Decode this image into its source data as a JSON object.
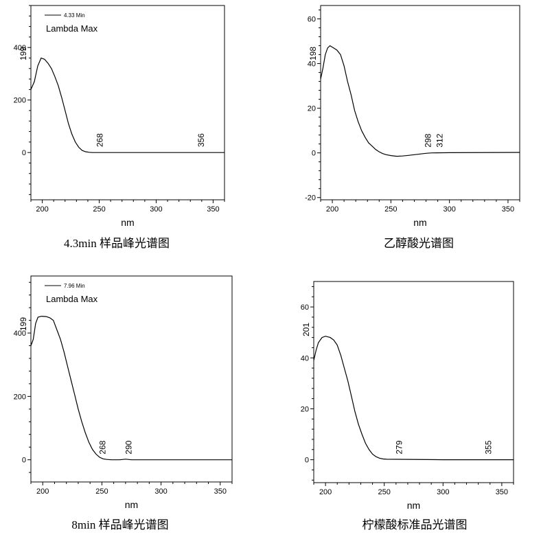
{
  "chart_data": [
    {
      "type": "line",
      "caption": "4.3min 样品峰光谱图",
      "xlabel": "nm",
      "xlim": [
        190,
        360
      ],
      "ylim": [
        -180,
        560
      ],
      "xticks": [
        200,
        250,
        300,
        350
      ],
      "yticks": [
        0,
        200,
        400
      ],
      "ylabel_top": "199",
      "legend": {
        "series_label": "4.33 Min",
        "title": "Lambda Max"
      },
      "peak_labels": [
        {
          "text": "268",
          "x": 253,
          "y": 0
        },
        {
          "text": "356",
          "x": 342,
          "y": 0
        }
      ],
      "series": [
        {
          "points": [
            [
              190,
              240
            ],
            [
              193,
              270
            ],
            [
              196,
              330
            ],
            [
              199,
              360
            ],
            [
              202,
              355
            ],
            [
              205,
              340
            ],
            [
              208,
              320
            ],
            [
              211,
              290
            ],
            [
              214,
              255
            ],
            [
              217,
              210
            ],
            [
              220,
              160
            ],
            [
              223,
              110
            ],
            [
              226,
              70
            ],
            [
              229,
              40
            ],
            [
              232,
              20
            ],
            [
              235,
              8
            ],
            [
              238,
              3
            ],
            [
              241,
              1
            ],
            [
              244,
              0
            ],
            [
              260,
              0
            ],
            [
              300,
              0
            ],
            [
              360,
              0
            ]
          ]
        }
      ]
    },
    {
      "type": "line",
      "caption": "乙醇酸光谱图",
      "xlabel": "nm",
      "xlim": [
        190,
        360
      ],
      "ylim": [
        -21,
        66
      ],
      "xticks": [
        200,
        250,
        300,
        350
      ],
      "yticks": [
        -20,
        0,
        20,
        40,
        60
      ],
      "ylabel_top": "198",
      "peak_labels": [
        {
          "text": "298",
          "x": 284,
          "y": 0
        },
        {
          "text": "312",
          "x": 294,
          "y": 0
        }
      ],
      "series": [
        {
          "points": [
            [
              190,
              33
            ],
            [
              192,
              38
            ],
            [
              194,
              44
            ],
            [
              196,
              47
            ],
            [
              198,
              48
            ],
            [
              201,
              47
            ],
            [
              204,
              46
            ],
            [
              207,
              44
            ],
            [
              210,
              39
            ],
            [
              213,
              32
            ],
            [
              216,
              26
            ],
            [
              219,
              19
            ],
            [
              222,
              14
            ],
            [
              225,
              10
            ],
            [
              228,
              7
            ],
            [
              231,
              4.5
            ],
            [
              234,
              3
            ],
            [
              237,
              1.5
            ],
            [
              240,
              0.5
            ],
            [
              243,
              -0.3
            ],
            [
              246,
              -0.8
            ],
            [
              250,
              -1.2
            ],
            [
              255,
              -1.5
            ],
            [
              260,
              -1.4
            ],
            [
              265,
              -1.1
            ],
            [
              270,
              -0.8
            ],
            [
              275,
              -0.5
            ],
            [
              280,
              -0.2
            ],
            [
              285,
              0
            ],
            [
              300,
              0.1
            ],
            [
              360,
              0.2
            ]
          ]
        }
      ]
    },
    {
      "type": "line",
      "caption": "8min 样品峰光谱图",
      "xlabel": "nm",
      "xlim": [
        190,
        360
      ],
      "ylim": [
        -70,
        580
      ],
      "xticks": [
        200,
        250,
        300,
        350
      ],
      "yticks": [
        0,
        200,
        400
      ],
      "ylabel_top": "199",
      "legend": {
        "series_label": "7.96 Min",
        "title": "Lambda Max"
      },
      "peak_labels": [
        {
          "text": "268",
          "x": 253,
          "y": 0
        },
        {
          "text": "290",
          "x": 275,
          "y": 0
        }
      ],
      "series": [
        {
          "points": [
            [
              190,
              360
            ],
            [
              192,
              380
            ],
            [
              194,
              430
            ],
            [
              196,
              450
            ],
            [
              199,
              453
            ],
            [
              203,
              452
            ],
            [
              206,
              448
            ],
            [
              209,
              440
            ],
            [
              212,
              410
            ],
            [
              215,
              380
            ],
            [
              218,
              340
            ],
            [
              221,
              295
            ],
            [
              224,
              250
            ],
            [
              227,
              205
            ],
            [
              230,
              160
            ],
            [
              233,
              120
            ],
            [
              236,
              85
            ],
            [
              239,
              55
            ],
            [
              242,
              33
            ],
            [
              245,
              18
            ],
            [
              248,
              8
            ],
            [
              251,
              3
            ],
            [
              254,
              1
            ],
            [
              258,
              0
            ],
            [
              265,
              0
            ],
            [
              270,
              2
            ],
            [
              275,
              0
            ],
            [
              300,
              0
            ],
            [
              360,
              0
            ]
          ]
        }
      ]
    },
    {
      "type": "line",
      "caption": "柠檬酸标准品光谱图",
      "xlabel": "nm",
      "xlim": [
        190,
        360
      ],
      "ylim": [
        -9,
        70
      ],
      "xticks": [
        200,
        250,
        300,
        350
      ],
      "yticks": [
        0,
        20,
        40,
        60
      ],
      "ylabel_top": "201",
      "peak_labels": [
        {
          "text": "279",
          "x": 265,
          "y": 0
        },
        {
          "text": "355",
          "x": 341,
          "y": 0
        }
      ],
      "series": [
        {
          "points": [
            [
              190,
              39
            ],
            [
              192,
              43
            ],
            [
              194,
              46
            ],
            [
              197,
              48
            ],
            [
              200,
              48.5
            ],
            [
              204,
              48
            ],
            [
              207,
              47
            ],
            [
              210,
              45
            ],
            [
              213,
              41
            ],
            [
              216,
              36
            ],
            [
              219,
              31
            ],
            [
              222,
              25
            ],
            [
              225,
              19
            ],
            [
              228,
              14
            ],
            [
              231,
              10
            ],
            [
              234,
              6.5
            ],
            [
              237,
              4
            ],
            [
              240,
              2.2
            ],
            [
              243,
              1.2
            ],
            [
              246,
              0.6
            ],
            [
              249,
              0.3
            ],
            [
              252,
              0.2
            ],
            [
              300,
              0
            ],
            [
              360,
              0
            ]
          ]
        }
      ]
    }
  ]
}
